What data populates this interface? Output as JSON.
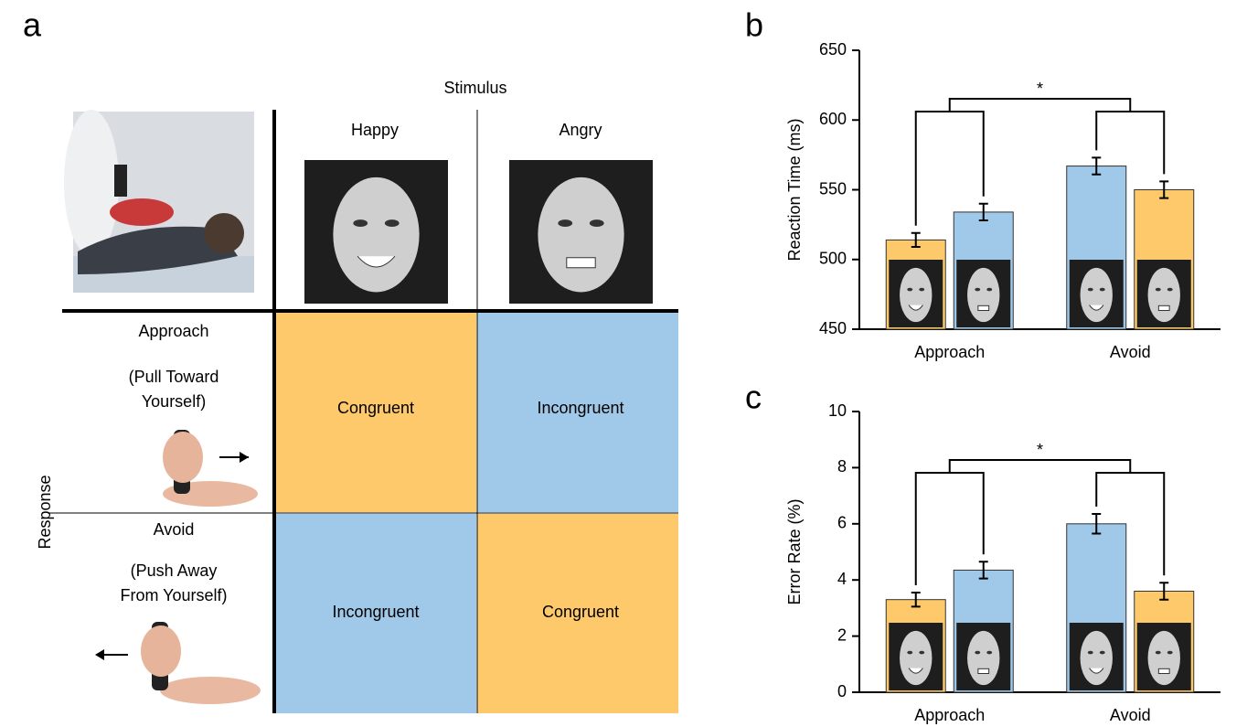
{
  "diagram": {
    "label": "a",
    "column_header": "Stimulus",
    "columns": [
      "Happy",
      "Angry"
    ],
    "row_header": "Response",
    "rows": [
      {
        "label": "Approach",
        "description": [
          "(Pull Toward",
          "Yourself)"
        ]
      },
      {
        "label": "Avoid",
        "description": [
          "(Push Away",
          "From Yourself)"
        ]
      }
    ],
    "cells": [
      [
        "Congruent",
        "Incongruent"
      ],
      [
        "Incongruent",
        "Congruent"
      ]
    ]
  },
  "chart_data": [
    {
      "type": "bar",
      "panel_label": "b",
      "y_label": "Reaction Time (ms)",
      "categories": [
        "Approach",
        "Avoid"
      ],
      "series": [
        {
          "values": [
            514,
            567
          ],
          "errors": [
            5,
            6
          ],
          "colors": [
            "#fdc96a",
            "#a0c8e8"
          ]
        },
        {
          "values": [
            534,
            550
          ],
          "errors": [
            6,
            6
          ],
          "colors": [
            "#a0c8e8",
            "#fdc96a"
          ]
        }
      ],
      "ylim": [
        450,
        650
      ],
      "yticks": [
        450,
        500,
        550,
        600,
        650
      ],
      "annotation": "*"
    },
    {
      "type": "bar",
      "panel_label": "c",
      "y_label": "Error Rate (%)",
      "categories": [
        "Approach",
        "Avoid"
      ],
      "series": [
        {
          "values": [
            3.3,
            6.0
          ],
          "errors": [
            0.25,
            0.35
          ],
          "colors": [
            "#fdc96a",
            "#a0c8e8"
          ]
        },
        {
          "values": [
            4.35,
            3.6
          ],
          "errors": [
            0.3,
            0.3
          ],
          "colors": [
            "#a0c8e8",
            "#fdc96a"
          ]
        }
      ],
      "ylim": [
        0,
        10
      ],
      "yticks": [
        0,
        2,
        4,
        6,
        8,
        10
      ],
      "annotation": "*"
    }
  ]
}
